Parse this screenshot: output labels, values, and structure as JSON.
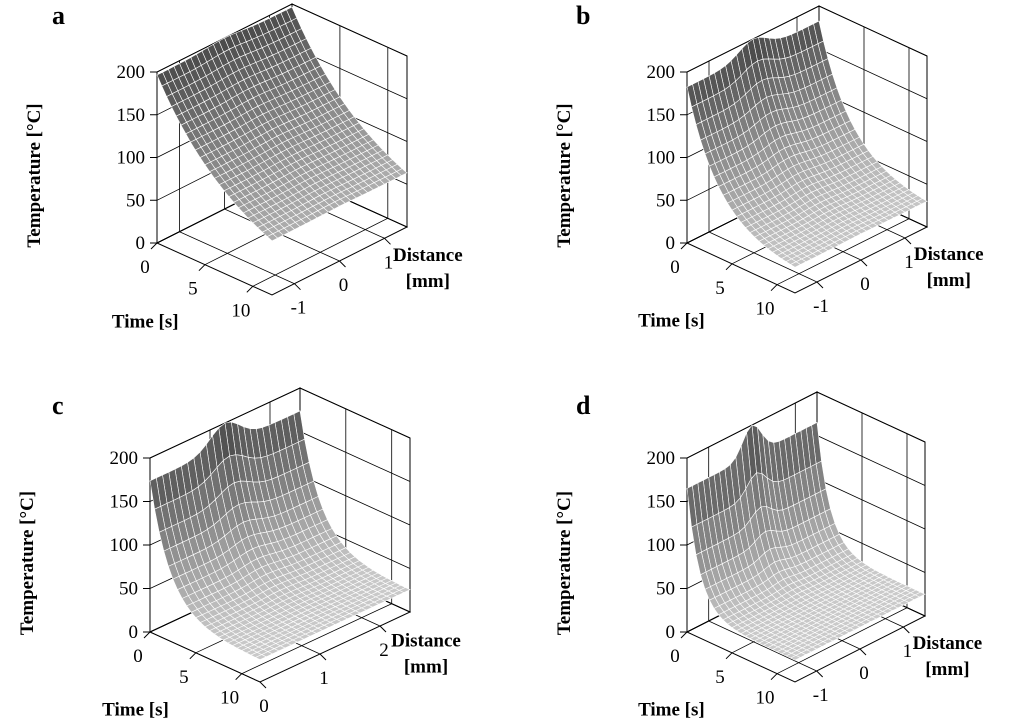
{
  "figure": {
    "panels": [
      "a",
      "b",
      "c",
      "d"
    ]
  },
  "chart_data": [
    {
      "type": "surface",
      "panel_label": "a",
      "zlabel": "Temperature [°C]",
      "xlabel": "Time [s]",
      "ylabel": [
        "Distance",
        "[mm]"
      ],
      "zticks": [
        "0",
        "50",
        "100",
        "150",
        "200"
      ],
      "xticks": [
        "0",
        "5",
        "10"
      ],
      "yticks": [
        "-1",
        "0",
        "1"
      ],
      "zlim": [
        0,
        200
      ],
      "xlim": [
        0,
        12
      ],
      "ylim": [
        -1.5,
        1.5
      ],
      "surface": {
        "peak": 200,
        "base": 25,
        "decay_s": 8.0,
        "width_mm": 0.55,
        "wall_frac": 0.98
      }
    },
    {
      "type": "surface",
      "panel_label": "b",
      "zlabel": "Temperature [°C]",
      "xlabel": "Time [s]",
      "ylabel": [
        "Distance",
        "[mm]"
      ],
      "zticks": [
        "0",
        "50",
        "100",
        "150",
        "200"
      ],
      "xticks": [
        "0",
        "5",
        "10"
      ],
      "yticks": [
        "-1",
        "0",
        "1"
      ],
      "zlim": [
        0,
        200
      ],
      "xlim": [
        0,
        12
      ],
      "ylim": [
        -1.5,
        1.5
      ],
      "surface": {
        "peak": 200,
        "base": 25,
        "decay_s": 3.5,
        "width_mm": 0.45,
        "wall_frac": 0.9
      }
    },
    {
      "type": "surface",
      "panel_label": "c",
      "zlabel": "Temperature [°C]",
      "xlabel": "Time [s]",
      "ylabel": [
        "Distance",
        "[mm]"
      ],
      "zticks": [
        "0",
        "50",
        "100",
        "150",
        "200"
      ],
      "xticks": [
        "0",
        "5",
        "10"
      ],
      "yticks": [
        "0",
        "1",
        "2"
      ],
      "zlim": [
        0,
        200
      ],
      "xlim": [
        0,
        12
      ],
      "ylim": [
        0,
        2.5
      ],
      "surface": {
        "peak": 200,
        "base": 25,
        "decay_s": 2.2,
        "width_mm": 0.35,
        "wall_frac": 0.85
      }
    },
    {
      "type": "surface",
      "panel_label": "d",
      "zlabel": "Temperature [°C]",
      "xlabel": "Time [s]",
      "ylabel": [
        "Distance",
        "[mm]"
      ],
      "zticks": [
        "0",
        "50",
        "100",
        "150",
        "200"
      ],
      "xticks": [
        "0",
        "5",
        "10"
      ],
      "yticks": [
        "-1",
        "0",
        "1"
      ],
      "zlim": [
        0,
        200
      ],
      "xlim": [
        0,
        12
      ],
      "ylim": [
        -1.5,
        1.5
      ],
      "surface": {
        "peak": 200,
        "base": 25,
        "decay_s": 1.4,
        "width_mm": 0.3,
        "wall_frac": 0.8
      }
    }
  ]
}
